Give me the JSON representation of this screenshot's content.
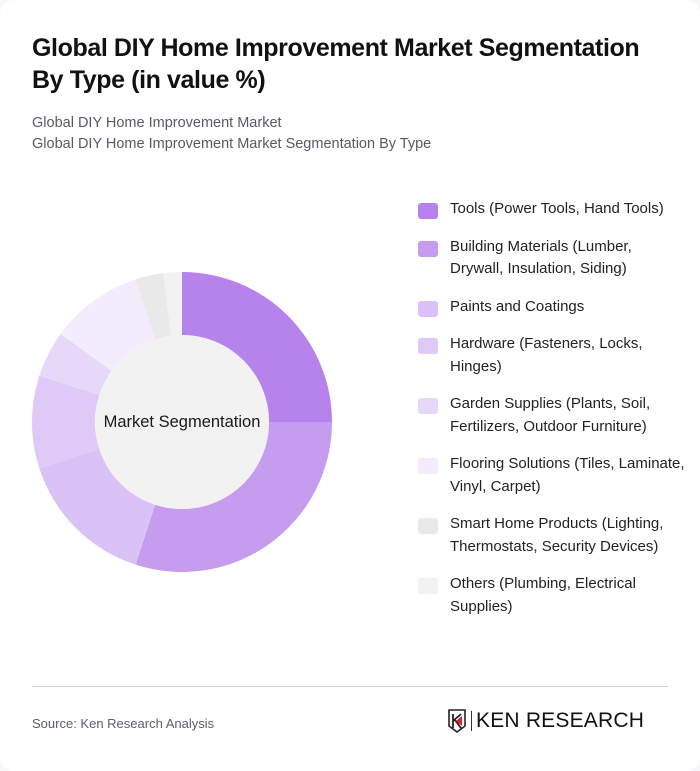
{
  "header": {
    "title": "Global DIY Home Improvement Market Segmentation By Type (in value %)",
    "subtitle_line1": "Global DIY Home Improvement Market",
    "subtitle_line2": "Global DIY Home Improvement Market Segmentation By Type"
  },
  "chart": {
    "center_label": "Market Segmentation"
  },
  "legend": {
    "items": [
      {
        "label": "Tools (Power Tools, Hand Tools)",
        "color": "#b583eb"
      },
      {
        "label": "Building Materials (Lumber, Drywall, Insulation, Siding)",
        "color": "#c69cee"
      },
      {
        "label": "Paints and Coatings",
        "color": "#dac1f6"
      },
      {
        "label": "Hardware (Fasteners, Locks, Hinges)",
        "color": "#dfcaf7"
      },
      {
        "label": "Garden Supplies (Plants, Soil, Fertilizers, Outdoor Furniture)",
        "color": "#e7d8fa"
      },
      {
        "label": "Flooring Solutions (Tiles, Laminate, Vinyl, Carpet)",
        "color": "#f3ecfc"
      },
      {
        "label": "Smart Home Products (Lighting, Thermostats, Security Devices)",
        "color": "#e9e9e9"
      },
      {
        "label": "Others (Plumbing, Electrical Supplies)",
        "color": "#f2f2f2"
      }
    ]
  },
  "footer": {
    "source": "Source: Ken Research Analysis",
    "logo_text": "KEN RESEARCH"
  },
  "chart_data": {
    "type": "pie",
    "title": "Global DIY Home Improvement Market Segmentation By Type (in value %)",
    "subtitle": "Global DIY Home Improvement Market Segmentation By Type",
    "center_label": "Market Segmentation",
    "legend_position": "right",
    "categories": [
      "Tools (Power Tools, Hand Tools)",
      "Building Materials (Lumber, Drywall, Insulation, Siding)",
      "Paints and Coatings",
      "Hardware (Fasteners, Locks, Hinges)",
      "Garden Supplies (Plants, Soil, Fertilizers, Outdoor Furniture)",
      "Flooring Solutions (Tiles, Laminate, Vinyl, Carpet)",
      "Smart Home Products (Lighting, Thermostats, Security Devices)",
      "Others (Plumbing, Electrical Supplies)"
    ],
    "values": [
      25,
      30,
      15,
      10,
      5,
      10,
      3,
      2
    ],
    "colors": [
      "#b583eb",
      "#c69cee",
      "#dac1f6",
      "#dfcaf7",
      "#e7d8fa",
      "#f3ecfc",
      "#e9e9e9",
      "#f2f2f2"
    ],
    "unit": "%"
  }
}
